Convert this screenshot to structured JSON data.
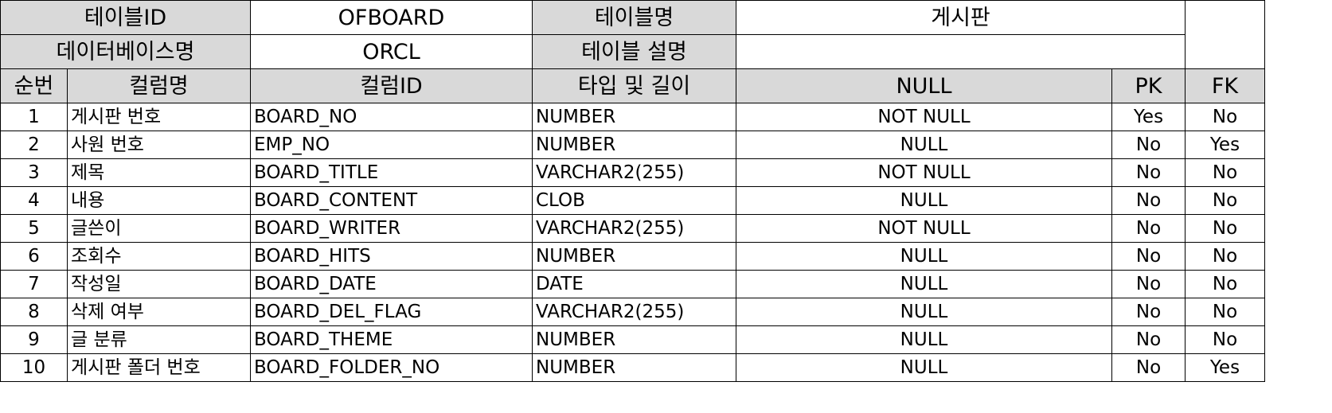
{
  "meta": {
    "table_id_label": "테이블ID",
    "table_id": "OFBOARD",
    "table_name_label": "테이블명",
    "table_name": "게시판",
    "db_name_label": "데이터베이스명",
    "db_name": "ORCL",
    "table_desc_label": "테이블 설명",
    "table_desc": ""
  },
  "columns_header": {
    "seq": "순번",
    "col_name": "컬럼명",
    "col_id": "컬럼ID",
    "type_len": "타입 및 길이",
    "null": "NULL",
    "pk": "PK",
    "fk": "FK"
  },
  "rows": [
    {
      "seq": "1",
      "name": "게시판 번호",
      "id": "BOARD_NO",
      "type": "NUMBER",
      "null": "NOT NULL",
      "pk": "Yes",
      "fk": "No"
    },
    {
      "seq": "2",
      "name": "사원 번호",
      "id": "EMP_NO",
      "type": "NUMBER",
      "null": "NULL",
      "pk": "No",
      "fk": "Yes"
    },
    {
      "seq": "3",
      "name": "제목",
      "id": "BOARD_TITLE",
      "type": "VARCHAR2(255)",
      "null": "NOT NULL",
      "pk": "No",
      "fk": "No"
    },
    {
      "seq": "4",
      "name": "내용",
      "id": "BOARD_CONTENT",
      "type": "CLOB",
      "null": "NULL",
      "pk": "No",
      "fk": "No"
    },
    {
      "seq": "5",
      "name": "글쓴이",
      "id": "BOARD_WRITER",
      "type": "VARCHAR2(255)",
      "null": "NOT NULL",
      "pk": "No",
      "fk": "No"
    },
    {
      "seq": "6",
      "name": "조회수",
      "id": "BOARD_HITS",
      "type": "NUMBER",
      "null": "NULL",
      "pk": "No",
      "fk": "No"
    },
    {
      "seq": "7",
      "name": "작성일",
      "id": "BOARD_DATE",
      "type": "DATE",
      "null": "NULL",
      "pk": "No",
      "fk": "No"
    },
    {
      "seq": "8",
      "name": "삭제 여부",
      "id": "BOARD_DEL_FLAG",
      "type": "VARCHAR2(255)",
      "null": "NULL",
      "pk": "No",
      "fk": "No"
    },
    {
      "seq": "9",
      "name": "글 분류",
      "id": "BOARD_THEME",
      "type": "NUMBER",
      "null": "NULL",
      "pk": "No",
      "fk": "No"
    },
    {
      "seq": "10",
      "name": "게시판 폴더 번호",
      "id": "BOARD_FOLDER_NO",
      "type": "NUMBER",
      "null": "NULL",
      "pk": "No",
      "fk": "Yes"
    }
  ]
}
